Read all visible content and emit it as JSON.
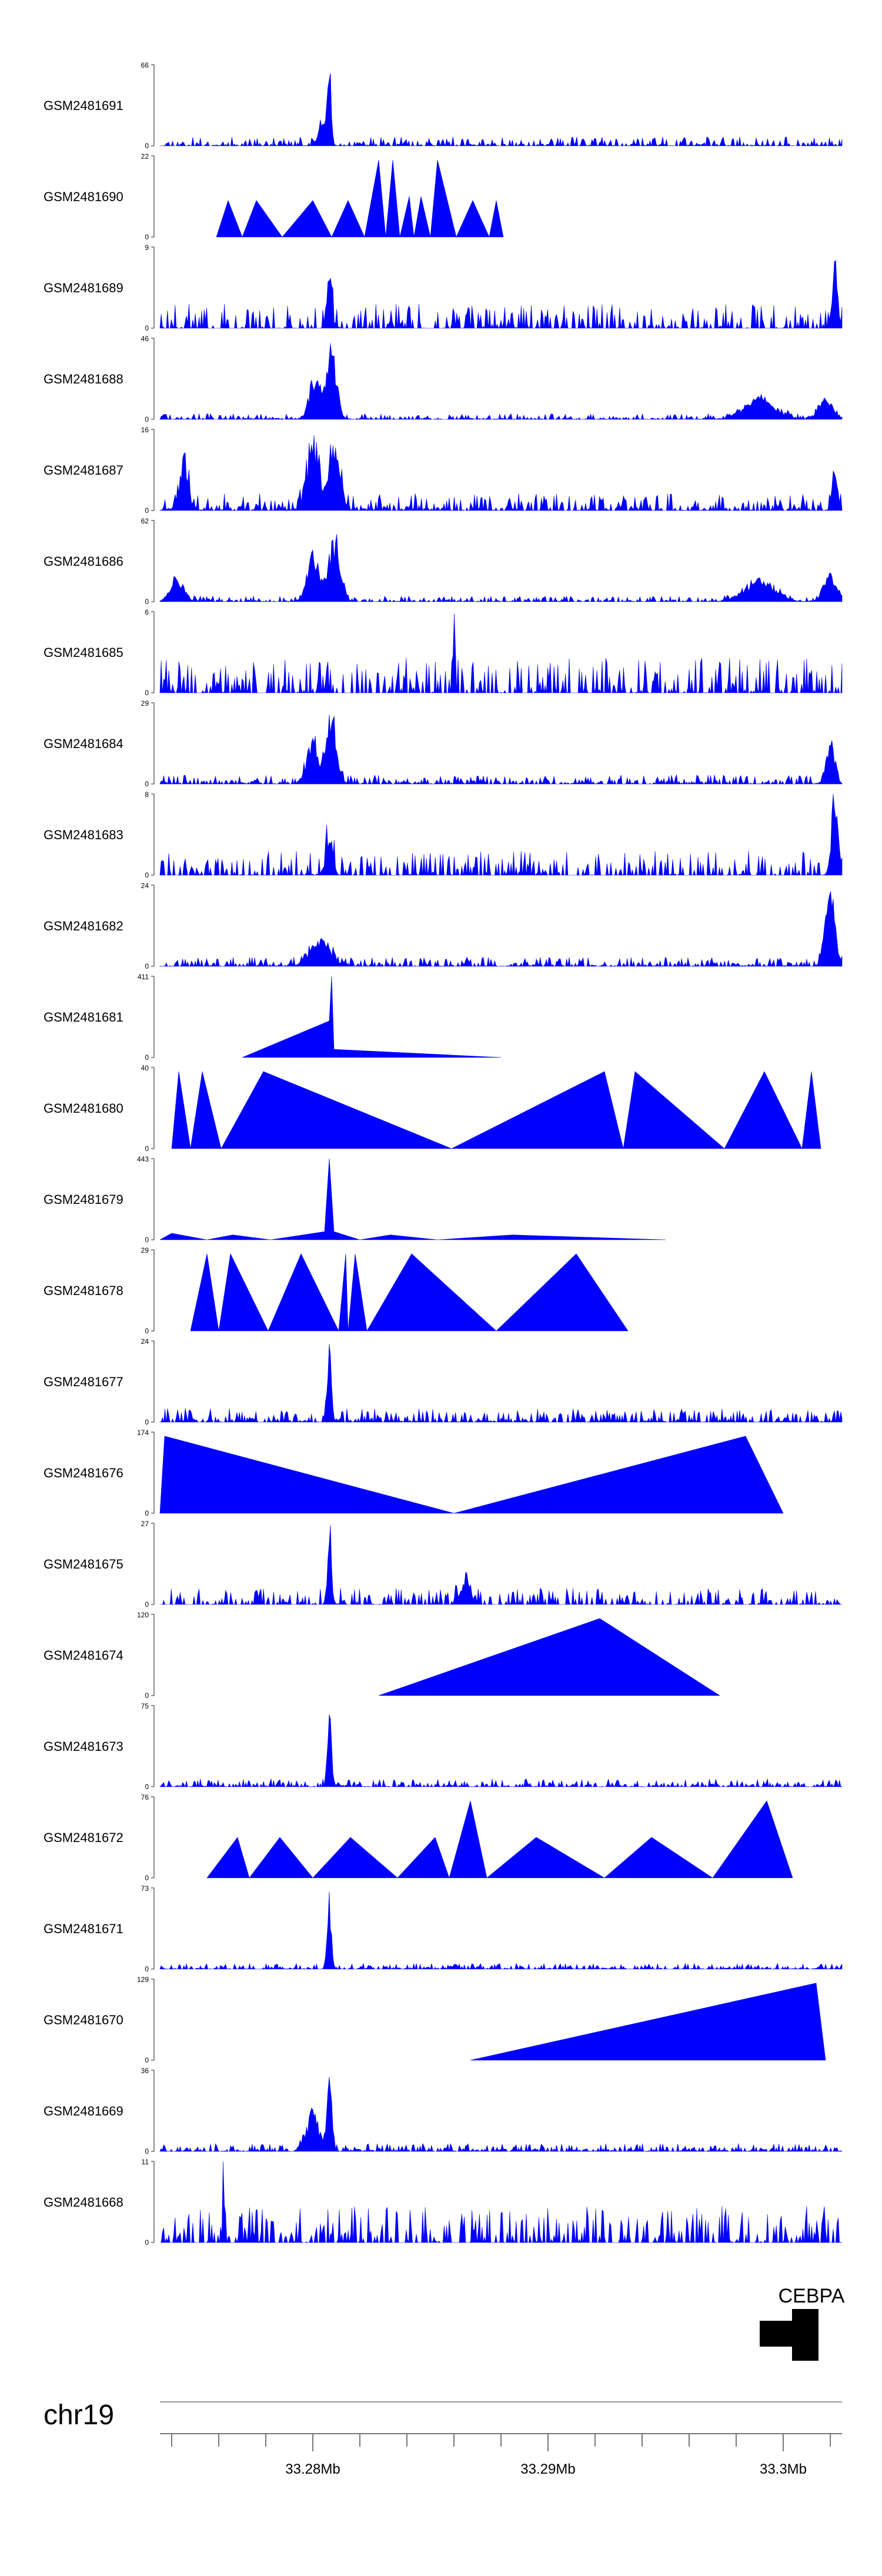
{
  "chart_data": {
    "type": "area",
    "title": "",
    "xlabel": "",
    "ylabel": "",
    "chromosome": "chr19",
    "xlim_mb": [
      33.2735,
      33.3025
    ],
    "ticks_mb": [
      33.28,
      33.29,
      33.3
    ],
    "tick_labels": [
      "33.28Mb",
      "33.29Mb",
      "33.3Mb"
    ],
    "minor_ticks_mb": [
      33.274,
      33.276,
      33.278,
      33.282,
      33.284,
      33.286,
      33.288,
      33.292,
      33.294,
      33.296,
      33.298,
      33.302
    ],
    "tracks": [
      {
        "name": "GSM2481691",
        "ymax": "66",
        "ymin": "0",
        "style": "dense",
        "seed": 11,
        "peaks": [
          [
            33.2807,
            1.0,
            0.12
          ],
          [
            33.2804,
            0.35,
            0.2
          ]
        ],
        "bg": 0.08,
        "xrange": [
          33.2735,
          33.3025
        ]
      },
      {
        "name": "GSM2481690",
        "ymax": "22",
        "ymin": "0",
        "style": "tri",
        "points": [
          [
            33.2759,
            0
          ],
          [
            33.2764,
            0.45
          ],
          [
            33.277,
            0
          ],
          [
            33.2776,
            0.45
          ],
          [
            33.2787,
            0
          ],
          [
            33.28,
            0.45
          ],
          [
            33.2808,
            0
          ],
          [
            33.2815,
            0.45
          ],
          [
            33.2822,
            0
          ],
          [
            33.2828,
            0.95
          ],
          [
            33.2831,
            0
          ],
          [
            33.2834,
            0.95
          ],
          [
            33.2837,
            0
          ],
          [
            33.2841,
            0.5
          ],
          [
            33.2843,
            0
          ],
          [
            33.2846,
            0.5
          ],
          [
            33.285,
            0
          ],
          [
            33.2853,
            0.95
          ],
          [
            33.2861,
            0
          ],
          [
            33.2868,
            0.45
          ],
          [
            33.2875,
            0
          ],
          [
            33.2878,
            0.45
          ],
          [
            33.2881,
            0
          ]
        ]
      },
      {
        "name": "GSM2481689",
        "ymax": "9",
        "ymin": "0",
        "style": "spiky",
        "seed": 23,
        "peaks": [
          [
            33.3022,
            1.0,
            0.15
          ],
          [
            33.2807,
            0.7,
            0.15
          ]
        ],
        "bg": 0.3,
        "xrange": [
          33.2735,
          33.3025
        ]
      },
      {
        "name": "GSM2481688",
        "ymax": "46",
        "ymin": "0",
        "style": "dense",
        "seed": 31,
        "peaks": [
          [
            33.2801,
            0.6,
            0.35
          ],
          [
            33.2808,
            0.95,
            0.3
          ],
          [
            33.299,
            0.3,
            0.9
          ],
          [
            33.3018,
            0.3,
            0.4
          ]
        ],
        "bg": 0.05,
        "xrange": [
          33.2735,
          33.3025
        ]
      },
      {
        "name": "GSM2481687",
        "ymax": "16",
        "ymin": "0",
        "style": "dense",
        "seed": 41,
        "peaks": [
          [
            33.2745,
            0.6,
            0.3
          ],
          [
            33.28,
            0.95,
            0.35
          ],
          [
            33.2809,
            0.8,
            0.35
          ],
          [
            33.3022,
            0.6,
            0.15
          ]
        ],
        "bg": 0.15,
        "xrange": [
          33.2735,
          33.3025
        ]
      },
      {
        "name": "GSM2481686",
        "ymax": "62",
        "ymin": "0",
        "style": "dense",
        "seed": 53,
        "peaks": [
          [
            33.2742,
            0.3,
            0.4
          ],
          [
            33.28,
            0.65,
            0.35
          ],
          [
            33.2809,
            0.9,
            0.35
          ],
          [
            33.299,
            0.3,
            0.9
          ],
          [
            33.302,
            0.35,
            0.4
          ]
        ],
        "bg": 0.05,
        "xrange": [
          33.2735,
          33.3025
        ]
      },
      {
        "name": "GSM2481685",
        "ymax": "6",
        "ymin": "0",
        "style": "spiky",
        "seed": 61,
        "peaks": [
          [
            33.286,
            1.0,
            0.06
          ]
        ],
        "bg": 0.45,
        "xrange": [
          33.2735,
          33.3025
        ]
      },
      {
        "name": "GSM2481684",
        "ymax": "29",
        "ymin": "0",
        "style": "dense",
        "seed": 71,
        "peaks": [
          [
            33.28,
            0.6,
            0.35
          ],
          [
            33.2808,
            0.95,
            0.3
          ],
          [
            33.302,
            0.6,
            0.25
          ]
        ],
        "bg": 0.08,
        "xrange": [
          33.2735,
          33.3025
        ]
      },
      {
        "name": "GSM2481683",
        "ymax": "8",
        "ymin": "0",
        "style": "spiky",
        "seed": 83,
        "peaks": [
          [
            33.3022,
            1.0,
            0.2
          ],
          [
            33.2807,
            0.55,
            0.2
          ]
        ],
        "bg": 0.3,
        "xrange": [
          33.2735,
          33.3025
        ]
      },
      {
        "name": "GSM2481682",
        "ymax": "24",
        "ymin": "0",
        "style": "dense",
        "seed": 97,
        "peaks": [
          [
            33.2803,
            0.35,
            0.6
          ],
          [
            33.302,
            1.0,
            0.3
          ]
        ],
        "bg": 0.08,
        "xrange": [
          33.2735,
          33.3025
        ]
      },
      {
        "name": "GSM2481681",
        "ymax": "411",
        "ymin": "0",
        "style": "tri",
        "points": [
          [
            33.277,
            0
          ],
          [
            33.2807,
            0.45
          ],
          [
            33.2808,
            1.0
          ],
          [
            33.2809,
            0.1
          ],
          [
            33.288,
            0
          ]
        ]
      },
      {
        "name": "GSM2481680",
        "ymax": "40",
        "ymin": "0",
        "style": "tri",
        "points": [
          [
            33.274,
            0
          ],
          [
            33.2743,
            0.95
          ],
          [
            33.2748,
            0
          ],
          [
            33.2753,
            0.95
          ],
          [
            33.2761,
            0
          ],
          [
            33.2779,
            0.95
          ],
          [
            33.2859,
            0
          ],
          [
            33.2924,
            0.95
          ],
          [
            33.2932,
            0
          ],
          [
            33.2937,
            0.95
          ],
          [
            33.2975,
            0
          ],
          [
            33.2992,
            0.95
          ],
          [
            33.3008,
            0
          ],
          [
            33.3012,
            0.95
          ],
          [
            33.3016,
            0
          ]
        ]
      },
      {
        "name": "GSM2481679",
        "ymax": "443",
        "ymin": "0",
        "style": "tri",
        "points": [
          [
            33.2735,
            0
          ],
          [
            33.274,
            0.08
          ],
          [
            33.2755,
            0
          ],
          [
            33.2766,
            0.06
          ],
          [
            33.2782,
            0
          ],
          [
            33.2805,
            0.1
          ],
          [
            33.2807,
            1.0
          ],
          [
            33.2809,
            0.1
          ],
          [
            33.282,
            0
          ],
          [
            33.2833,
            0.06
          ],
          [
            33.2853,
            0
          ],
          [
            33.2885,
            0.06
          ],
          [
            33.295,
            0
          ]
        ]
      },
      {
        "name": "GSM2481678",
        "ymax": "29",
        "ymin": "0",
        "style": "tri",
        "points": [
          [
            33.2748,
            0
          ],
          [
            33.2755,
            0.95
          ],
          [
            33.276,
            0
          ],
          [
            33.2765,
            0.95
          ],
          [
            33.2781,
            0
          ],
          [
            33.2795,
            0.95
          ],
          [
            33.2811,
            0
          ],
          [
            33.2814,
            0.95
          ],
          [
            33.2815,
            0
          ],
          [
            33.2818,
            0.95
          ],
          [
            33.2823,
            0
          ],
          [
            33.2842,
            0.95
          ],
          [
            33.2878,
            0
          ],
          [
            33.2912,
            0.95
          ],
          [
            33.2934,
            0
          ]
        ]
      },
      {
        "name": "GSM2481677",
        "ymax": "24",
        "ymin": "0",
        "style": "dense",
        "seed": 113,
        "peaks": [
          [
            33.2807,
            1.0,
            0.12
          ]
        ],
        "bg": 0.12,
        "xrange": [
          33.2735,
          33.3025
        ]
      },
      {
        "name": "GSM2481676",
        "ymax": "174",
        "ymin": "0",
        "style": "tri",
        "points": [
          [
            33.2735,
            0
          ],
          [
            33.2737,
            0.95
          ],
          [
            33.286,
            0
          ],
          [
            33.2984,
            0.95
          ],
          [
            33.3,
            0
          ]
        ]
      },
      {
        "name": "GSM2481675",
        "ymax": "27",
        "ymin": "0",
        "style": "spiky",
        "seed": 127,
        "peaks": [
          [
            33.2807,
            1.0,
            0.12
          ],
          [
            33.2865,
            0.35,
            0.3
          ]
        ],
        "bg": 0.2,
        "xrange": [
          33.2735,
          33.3025
        ]
      },
      {
        "name": "GSM2481674",
        "ymax": "120",
        "ymin": "0",
        "style": "tri",
        "points": [
          [
            33.2828,
            0
          ],
          [
            33.2922,
            0.95
          ],
          [
            33.2973,
            0
          ]
        ]
      },
      {
        "name": "GSM2481673",
        "ymax": "75",
        "ymin": "0",
        "style": "dense",
        "seed": 131,
        "peaks": [
          [
            33.2807,
            1.0,
            0.12
          ]
        ],
        "bg": 0.07,
        "xrange": [
          33.2735,
          33.3025
        ]
      },
      {
        "name": "GSM2481672",
        "ymax": "76",
        "ymin": "0",
        "style": "tri",
        "points": [
          [
            33.2755,
            0
          ],
          [
            33.2768,
            0.5
          ],
          [
            33.2773,
            0
          ],
          [
            33.2786,
            0.5
          ],
          [
            33.28,
            0
          ],
          [
            33.2816,
            0.5
          ],
          [
            33.2836,
            0
          ],
          [
            33.2852,
            0.5
          ],
          [
            33.2858,
            0
          ],
          [
            33.2867,
            0.95
          ],
          [
            33.2874,
            0
          ],
          [
            33.2895,
            0.5
          ],
          [
            33.2924,
            0
          ],
          [
            33.2944,
            0.5
          ],
          [
            33.297,
            0
          ],
          [
            33.2993,
            0.95
          ],
          [
            33.3004,
            0
          ]
        ]
      },
      {
        "name": "GSM2481671",
        "ymax": "73",
        "ymin": "0",
        "style": "dense",
        "seed": 149,
        "peaks": [
          [
            33.2807,
            1.0,
            0.12
          ]
        ],
        "bg": 0.05,
        "xrange": [
          33.2735,
          33.3025
        ]
      },
      {
        "name": "GSM2481670",
        "ymax": "129",
        "ymin": "0",
        "style": "tri",
        "points": [
          [
            33.2867,
            0
          ],
          [
            33.3014,
            0.95
          ],
          [
            33.3018,
            0
          ]
        ]
      },
      {
        "name": "GSM2481669",
        "ymax": "36",
        "ymin": "0",
        "style": "dense",
        "seed": 163,
        "peaks": [
          [
            33.28,
            0.55,
            0.35
          ],
          [
            33.2807,
            0.95,
            0.15
          ]
        ],
        "bg": 0.07,
        "xrange": [
          33.2735,
          33.3025
        ]
      },
      {
        "name": "GSM2481668",
        "ymax": "11",
        "ymin": "0",
        "style": "spiky",
        "seed": 179,
        "peaks": [
          [
            33.2762,
            0.95,
            0.05
          ]
        ],
        "bg": 0.45,
        "xrange": [
          33.2735,
          33.3025
        ]
      }
    ],
    "gene": {
      "name": "CEBPA",
      "start_mb": 33.299,
      "end_mb": 33.3015
    }
  }
}
